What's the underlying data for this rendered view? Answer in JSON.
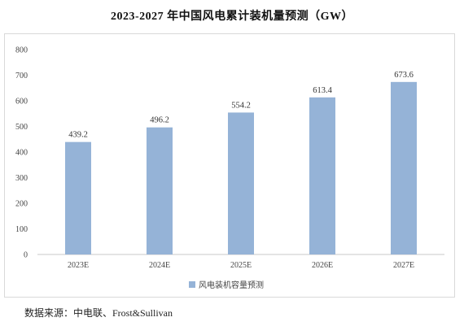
{
  "title": "2023-2027 年中国风电累计装机量预测（GW）",
  "source": "数据来源：中电联、Frost&Sullivan",
  "chart_data": {
    "type": "bar",
    "title": "2023-2027 年中国风电累计装机量预测（GW）",
    "categories": [
      "2023E",
      "2024E",
      "2025E",
      "2026E",
      "2027E"
    ],
    "series": [
      {
        "name": "风电装机容量预测",
        "values": [
          439.2,
          496.2,
          554.2,
          613.4,
          673.6
        ],
        "color": "#95b3d7"
      }
    ],
    "data_labels": [
      "439.2",
      "496.2",
      "554.2",
      "613.4",
      "673.6"
    ],
    "ylim": [
      0,
      800
    ],
    "yticks": [
      0,
      100,
      200,
      300,
      400,
      500,
      600,
      700,
      800
    ],
    "grid": false,
    "legend_position": "bottom"
  }
}
